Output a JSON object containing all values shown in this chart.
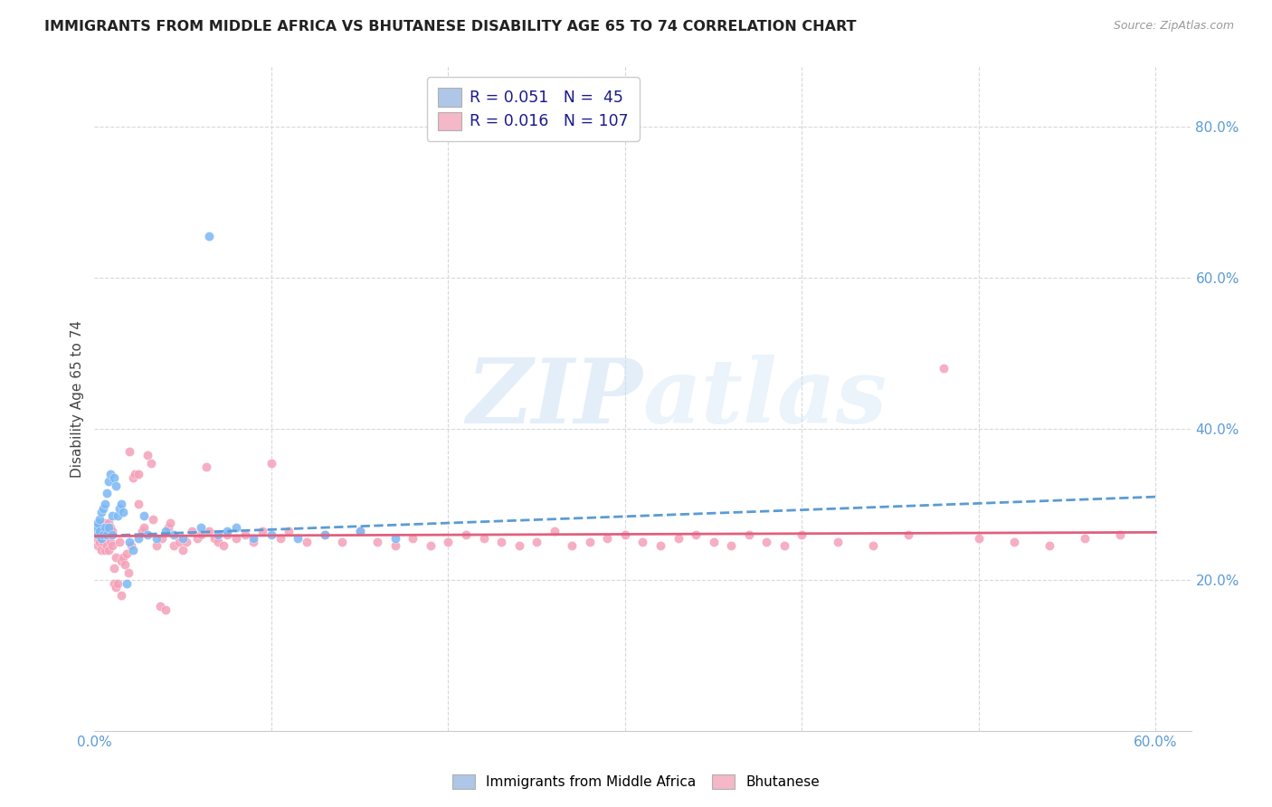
{
  "title": "IMMIGRANTS FROM MIDDLE AFRICA VS BHUTANESE DISABILITY AGE 65 TO 74 CORRELATION CHART",
  "source": "Source: ZipAtlas.com",
  "ylabel": "Disability Age 65 to 74",
  "xlim": [
    0.0,
    0.62
  ],
  "ylim": [
    0.0,
    0.88
  ],
  "blue_scatter_x": [
    0.001,
    0.002,
    0.002,
    0.003,
    0.003,
    0.004,
    0.004,
    0.005,
    0.005,
    0.006,
    0.006,
    0.007,
    0.007,
    0.008,
    0.008,
    0.009,
    0.01,
    0.01,
    0.011,
    0.012,
    0.013,
    0.014,
    0.015,
    0.016,
    0.018,
    0.02,
    0.022,
    0.025,
    0.028,
    0.03,
    0.035,
    0.04,
    0.045,
    0.05,
    0.06,
    0.065,
    0.07,
    0.075,
    0.08,
    0.09,
    0.1,
    0.115,
    0.13,
    0.15,
    0.17
  ],
  "blue_scatter_y": [
    0.27,
    0.275,
    0.26,
    0.28,
    0.265,
    0.29,
    0.255,
    0.295,
    0.26,
    0.3,
    0.27,
    0.315,
    0.26,
    0.33,
    0.27,
    0.34,
    0.285,
    0.26,
    0.335,
    0.325,
    0.285,
    0.295,
    0.3,
    0.29,
    0.195,
    0.25,
    0.24,
    0.255,
    0.285,
    0.26,
    0.255,
    0.265,
    0.26,
    0.255,
    0.27,
    0.655,
    0.26,
    0.265,
    0.27,
    0.255,
    0.26,
    0.255,
    0.26,
    0.265,
    0.255
  ],
  "pink_scatter_x": [
    0.001,
    0.001,
    0.002,
    0.002,
    0.003,
    0.003,
    0.004,
    0.004,
    0.005,
    0.005,
    0.006,
    0.006,
    0.007,
    0.007,
    0.008,
    0.008,
    0.009,
    0.009,
    0.01,
    0.01,
    0.011,
    0.011,
    0.012,
    0.012,
    0.013,
    0.014,
    0.015,
    0.015,
    0.016,
    0.017,
    0.018,
    0.019,
    0.02,
    0.021,
    0.022,
    0.023,
    0.025,
    0.025,
    0.027,
    0.028,
    0.03,
    0.032,
    0.033,
    0.035,
    0.037,
    0.038,
    0.04,
    0.042,
    0.043,
    0.045,
    0.048,
    0.05,
    0.052,
    0.055,
    0.058,
    0.06,
    0.063,
    0.065,
    0.068,
    0.07,
    0.073,
    0.075,
    0.08,
    0.085,
    0.09,
    0.095,
    0.1,
    0.105,
    0.11,
    0.12,
    0.13,
    0.14,
    0.15,
    0.16,
    0.17,
    0.18,
    0.19,
    0.2,
    0.21,
    0.22,
    0.23,
    0.24,
    0.25,
    0.26,
    0.27,
    0.28,
    0.29,
    0.3,
    0.31,
    0.32,
    0.33,
    0.34,
    0.35,
    0.36,
    0.37,
    0.38,
    0.39,
    0.4,
    0.42,
    0.44,
    0.46,
    0.48,
    0.5,
    0.52,
    0.54,
    0.56,
    0.58
  ],
  "pink_scatter_y": [
    0.27,
    0.255,
    0.265,
    0.245,
    0.27,
    0.25,
    0.26,
    0.24,
    0.265,
    0.25,
    0.275,
    0.24,
    0.27,
    0.245,
    0.275,
    0.24,
    0.27,
    0.25,
    0.265,
    0.245,
    0.195,
    0.215,
    0.19,
    0.23,
    0.195,
    0.25,
    0.18,
    0.225,
    0.23,
    0.22,
    0.235,
    0.21,
    0.37,
    0.245,
    0.335,
    0.34,
    0.34,
    0.3,
    0.265,
    0.27,
    0.365,
    0.355,
    0.28,
    0.245,
    0.165,
    0.255,
    0.16,
    0.27,
    0.275,
    0.245,
    0.25,
    0.24,
    0.25,
    0.265,
    0.255,
    0.26,
    0.35,
    0.265,
    0.255,
    0.25,
    0.245,
    0.26,
    0.255,
    0.26,
    0.25,
    0.265,
    0.355,
    0.255,
    0.265,
    0.25,
    0.26,
    0.25,
    0.265,
    0.25,
    0.245,
    0.255,
    0.245,
    0.25,
    0.26,
    0.255,
    0.25,
    0.245,
    0.25,
    0.265,
    0.245,
    0.25,
    0.255,
    0.26,
    0.25,
    0.245,
    0.255,
    0.26,
    0.25,
    0.245,
    0.26,
    0.25,
    0.245,
    0.26,
    0.25,
    0.245,
    0.26,
    0.48,
    0.255,
    0.25,
    0.245,
    0.255,
    0.26
  ],
  "blue_line_x": [
    0.0,
    0.6
  ],
  "blue_line_y": [
    0.258,
    0.31
  ],
  "pink_line_x": [
    0.0,
    0.6
  ],
  "pink_line_y": [
    0.258,
    0.263
  ],
  "blue_dot_color": "#7ab8f5",
  "pink_dot_color": "#f5a0b8",
  "blue_line_color": "#5b9bd5",
  "pink_line_color": "#e06080",
  "blue_legend_color": "#aec6e8",
  "pink_legend_color": "#f4b8c8",
  "watermark_color": "#c8dff5",
  "background_color": "#ffffff",
  "grid_color": "#d8d8d8",
  "ytick_color": "#5b9bd5",
  "xtick_color": "#5b9bd5",
  "legend_r1": "R = 0.051",
  "legend_n1": "N =  45",
  "legend_r2": "R = 0.016",
  "legend_n2": "N = 107",
  "bottom_legend1": "Immigrants from Middle Africa",
  "bottom_legend2": "Bhutanese"
}
